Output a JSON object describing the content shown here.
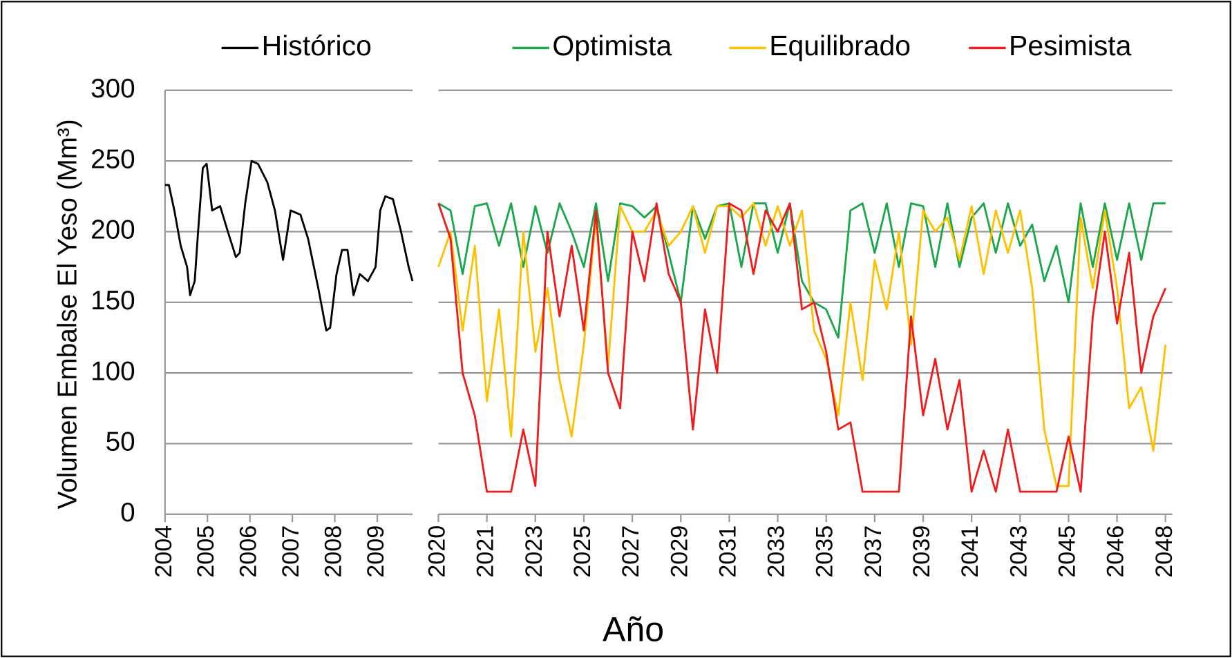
{
  "chart_data": [
    {
      "type": "line",
      "ylabel": "Volumen Embalse El Yeso (Mm³)",
      "ylim": [
        0,
        300
      ],
      "yticks": [
        0,
        50,
        100,
        150,
        200,
        250,
        300
      ],
      "grid": true,
      "xlim": [
        0,
        5.83
      ],
      "xticks": [
        {
          "value": 0,
          "label": "2004"
        },
        {
          "value": 1,
          "label": "2005"
        },
        {
          "value": 2,
          "label": "2006"
        },
        {
          "value": 3,
          "label": "2007"
        },
        {
          "value": 4,
          "label": "2008"
        },
        {
          "value": 5,
          "label": "2009"
        }
      ],
      "x": [
        0,
        0.09,
        0.22,
        0.37,
        0.52,
        0.59,
        0.7,
        0.78,
        0.89,
        0.98,
        1.11,
        1.3,
        1.48,
        1.67,
        1.76,
        1.89,
        2.04,
        2.19,
        2.41,
        2.59,
        2.78,
        2.96,
        3.19,
        3.37,
        3.61,
        3.8,
        3.89,
        4.04,
        4.17,
        4.3,
        4.44,
        4.59,
        4.78,
        4.96,
        5.07,
        5.19,
        5.37,
        5.56,
        5.74,
        5.83
      ],
      "series": [
        {
          "name": "Histórico",
          "color": "#000000",
          "values": [
            233,
            233,
            215,
            190,
            175,
            155,
            165,
            200,
            245,
            248,
            215,
            218,
            200,
            182,
            185,
            220,
            250,
            248,
            235,
            215,
            180,
            215,
            212,
            195,
            160,
            130,
            132,
            170,
            187,
            187,
            155,
            170,
            165,
            175,
            215,
            225,
            223,
            200,
            175,
            165
          ]
        }
      ]
    },
    {
      "type": "line",
      "xlabel": "Año",
      "ylim": [
        0,
        300
      ],
      "yticks": [
        0,
        50,
        100,
        150,
        200,
        250,
        300
      ],
      "grid": true,
      "xlim": [
        0,
        15.14
      ],
      "xticks": [
        {
          "value": 0,
          "label": "2020"
        },
        {
          "value": 1,
          "label": "2021"
        },
        {
          "value": 2,
          "label": "2023"
        },
        {
          "value": 3,
          "label": "2025"
        },
        {
          "value": 4,
          "label": "2027"
        },
        {
          "value": 5,
          "label": "2029"
        },
        {
          "value": 6,
          "label": "2031"
        },
        {
          "value": 7,
          "label": "2033"
        },
        {
          "value": 8,
          "label": "2035"
        },
        {
          "value": 9,
          "label": "2037"
        },
        {
          "value": 10,
          "label": "2039"
        },
        {
          "value": 11,
          "label": "2041"
        },
        {
          "value": 12,
          "label": "2043"
        },
        {
          "value": 13,
          "label": "2045"
        },
        {
          "value": 14,
          "label": "2046"
        },
        {
          "value": 15,
          "label": "2048"
        }
      ],
      "x": [
        0,
        0.25,
        0.5,
        0.75,
        1,
        1.25,
        1.5,
        1.75,
        2,
        2.25,
        2.5,
        2.75,
        3,
        3.25,
        3.5,
        3.75,
        4,
        4.25,
        4.5,
        4.75,
        5,
        5.25,
        5.5,
        5.75,
        6,
        6.25,
        6.5,
        6.75,
        7,
        7.25,
        7.5,
        7.75,
        8,
        8.25,
        8.5,
        8.75,
        9,
        9.25,
        9.5,
        9.75,
        10,
        10.25,
        10.5,
        10.75,
        11,
        11.25,
        11.5,
        11.75,
        12,
        12.25,
        12.5,
        12.75,
        13,
        13.25,
        13.5,
        13.75,
        14,
        14.25,
        14.5,
        14.75,
        15
      ],
      "series": [
        {
          "name": "Optimista",
          "color": "#1aa64a",
          "values": [
            220,
            215,
            170,
            218,
            220,
            190,
            220,
            175,
            218,
            185,
            220,
            200,
            175,
            220,
            165,
            220,
            218,
            210,
            218,
            185,
            150,
            218,
            195,
            218,
            220,
            175,
            220,
            220,
            185,
            220,
            165,
            150,
            145,
            125,
            215,
            220,
            185,
            220,
            175,
            220,
            218,
            175,
            220,
            175,
            210,
            220,
            185,
            220,
            190,
            205,
            165,
            190,
            150,
            220,
            175,
            220,
            180,
            220,
            180,
            220,
            220
          ]
        },
        {
          "name": "Equilibrado",
          "color": "#ffc000",
          "values": [
            175,
            200,
            130,
            190,
            80,
            145,
            55,
            200,
            115,
            160,
            95,
            55,
            120,
            210,
            105,
            218,
            200,
            200,
            215,
            190,
            200,
            218,
            185,
            218,
            218,
            210,
            220,
            190,
            218,
            190,
            215,
            130,
            110,
            70,
            150,
            95,
            180,
            145,
            200,
            120,
            215,
            200,
            210,
            180,
            218,
            170,
            215,
            185,
            215,
            160,
            60,
            20,
            20,
            210,
            160,
            215,
            160,
            75,
            90,
            45,
            120
          ]
        },
        {
          "name": "Pesimista",
          "color": "#ee1c1c",
          "values": [
            220,
            195,
            100,
            70,
            16,
            16,
            16,
            60,
            20,
            200,
            140,
            190,
            130,
            215,
            100,
            75,
            200,
            165,
            220,
            170,
            150,
            60,
            145,
            100,
            220,
            215,
            170,
            215,
            200,
            220,
            145,
            150,
            115,
            60,
            65,
            16,
            16,
            16,
            16,
            140,
            70,
            110,
            60,
            95,
            16,
            45,
            16,
            60,
            16,
            16,
            16,
            16,
            55,
            16,
            140,
            200,
            135,
            185,
            100,
            140,
            160
          ]
        }
      ]
    }
  ]
}
